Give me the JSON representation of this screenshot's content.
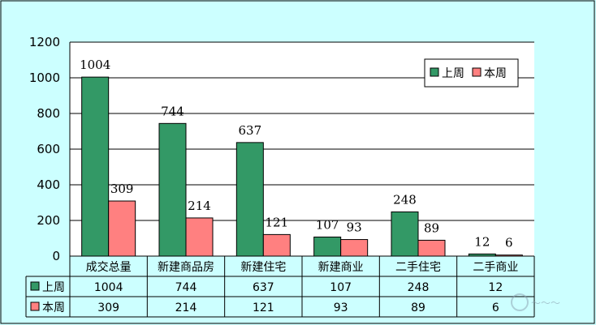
{
  "chart_data": {
    "type": "bar",
    "categories": [
      "成交总量",
      "新建商品房",
      "新建住宅",
      "新建商业",
      "二手住宅",
      "二手商业"
    ],
    "series": [
      {
        "name": "上周",
        "values": [
          1004,
          744,
          637,
          107,
          248,
          12
        ],
        "color": "#339966"
      },
      {
        "name": "本周",
        "values": [
          309,
          214,
          121,
          93,
          89,
          6
        ],
        "color": "#ff8080"
      }
    ],
    "ylim": [
      0,
      1200
    ],
    "yticks": [
      0,
      200,
      400,
      600,
      800,
      1000,
      1200
    ],
    "grid": true,
    "legend": "top-right",
    "data_table": true
  }
}
